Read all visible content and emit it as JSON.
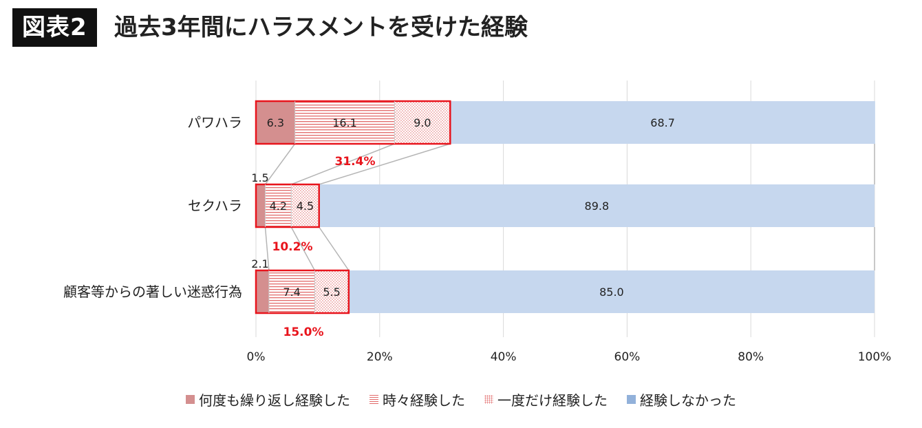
{
  "figure": {
    "label": "図表2",
    "title": "過去3年間にハラスメントを受けた経験"
  },
  "chart_data": {
    "type": "bar",
    "orientation": "horizontal",
    "stacked": true,
    "categories": [
      "パワハラ",
      "セクハラ",
      "顧客等からの著しい迷惑行為"
    ],
    "series": [
      {
        "name": "何度も繰り返し経験した",
        "values": [
          6.3,
          1.5,
          2.1
        ],
        "color": "#d48f8f",
        "pattern": "solid"
      },
      {
        "name": "時々経験した",
        "values": [
          16.1,
          4.2,
          7.4
        ],
        "color": "#e26a6a",
        "pattern": "horizontal-lines"
      },
      {
        "name": "一度だけ経験した",
        "values": [
          9.0,
          4.5,
          5.5
        ],
        "color": "#e26a6a",
        "pattern": "dots"
      },
      {
        "name": "経験しなかった",
        "values": [
          68.7,
          89.8,
          85.0
        ],
        "color": "#c6d7ee",
        "pattern": "solid"
      }
    ],
    "data_labels": [
      [
        "6.3",
        "16.1",
        "9.0",
        "68.7"
      ],
      [
        "1.5",
        "4.2",
        "4.5",
        "89.8"
      ],
      [
        "2.1",
        "7.4",
        "5.5",
        "85.0"
      ]
    ],
    "experienced_totals": [
      {
        "value": 31.4,
        "label": "31.4%"
      },
      {
        "value": 10.2,
        "label": "10.2%"
      },
      {
        "value": 15.0,
        "label": "15.0%"
      }
    ],
    "x_ticks": [
      "0%",
      "20%",
      "40%",
      "60%",
      "80%",
      "100%"
    ],
    "xlim": [
      0,
      100
    ],
    "grid": true,
    "legend_position": "bottom",
    "highlight_color": "#e8141c"
  }
}
